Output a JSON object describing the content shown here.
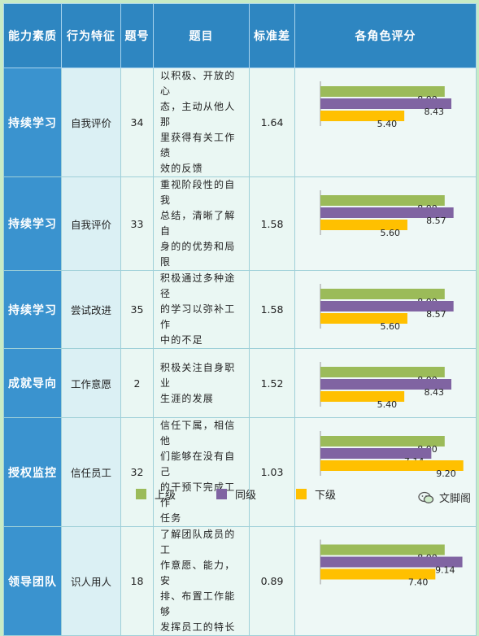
{
  "headers": {
    "ability": "能力素质",
    "behavior": "行为特征",
    "number": "题号",
    "question": "题目",
    "stddev": "标准差",
    "ratings": "各角色评分"
  },
  "rows": [
    {
      "ability": "持续学习",
      "behavior": "自我评价",
      "number": "34",
      "question_lines": [
        "以积极、开放的心",
        "态，主动从他人那",
        "里获得有关工作绩",
        "效的反馈"
      ],
      "stddev": "1.64"
    },
    {
      "ability": "持续学习",
      "behavior": "自我评价",
      "number": "33",
      "question_lines": [
        "重视阶段性的自我",
        "总结，清晰了解自",
        "身的的优势和局限"
      ],
      "stddev": "1.58"
    },
    {
      "ability": "持续学习",
      "behavior": "尝试改进",
      "number": "35",
      "question_lines": [
        "积极通过多种途径",
        "的学习以弥补工作",
        "中的不足"
      ],
      "stddev": "1.58"
    },
    {
      "ability": "成就导向",
      "behavior": "工作意愿",
      "number": "2",
      "question_lines": [
        "积极关注自身职业",
        "生涯的发展"
      ],
      "stddev": "1.52"
    },
    {
      "ability": "授权监控",
      "behavior": "信任员工",
      "number": "32",
      "question_lines": [
        "信任下属，相信他",
        "们能够在没有自己",
        "的干预下完成工作",
        "任务"
      ],
      "stddev": "1.03"
    },
    {
      "ability": "领导团队",
      "behavior": "识人用人",
      "number": "18",
      "question_lines": [
        "了解团队成员的工",
        "作意愿、能力，安",
        "排、布置工作能够",
        "发挥员工的特长"
      ],
      "stddev": "0.89"
    }
  ],
  "chart_data": {
    "type": "bar",
    "orientation": "horizontal",
    "categories": [
      "34",
      "33",
      "35",
      "2",
      "32",
      "18"
    ],
    "series": [
      {
        "name": "上级",
        "color": "#9bbb59",
        "values": [
          8.0,
          8.0,
          8.0,
          8.0,
          8.0,
          8.0
        ],
        "labels": [
          "8.00",
          "8.00",
          "8.00",
          "8.00",
          "8.00",
          "8.00"
        ]
      },
      {
        "name": "同级",
        "color": "#8064a2",
        "values": [
          8.43,
          8.57,
          8.57,
          8.43,
          7.14,
          9.14
        ],
        "labels": [
          "8.43",
          "8.57",
          "8.57",
          "8.43",
          "7.14",
          "9.14"
        ]
      },
      {
        "name": "下级",
        "color": "#ffc000",
        "values": [
          5.4,
          5.6,
          5.6,
          5.4,
          9.2,
          7.4
        ],
        "labels": [
          "5.40",
          "5.60",
          "5.60",
          "5.40",
          "9.20",
          "7.40"
        ]
      }
    ],
    "xlim": [
      0,
      10
    ],
    "legend": "bottom"
  },
  "watermark": "文脚阁"
}
